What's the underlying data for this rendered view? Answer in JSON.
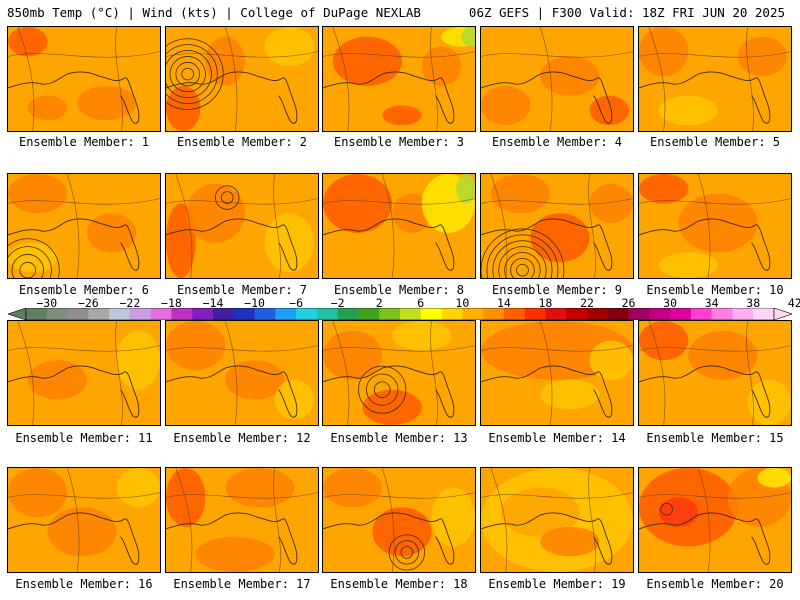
{
  "header": {
    "left": "850mb Temp (°C) | Wind (kts) | College of DuPage NEXLAB",
    "right": "06Z GEFS | F300 Valid: 18Z FRI JUN 20 2025"
  },
  "member_labels": [
    "Ensemble Member: 1",
    "Ensemble Member: 2",
    "Ensemble Member: 3",
    "Ensemble Member: 4",
    "Ensemble Member: 5",
    "Ensemble Member: 6",
    "Ensemble Member: 7",
    "Ensemble Member: 8",
    "Ensemble Member: 9",
    "Ensemble Member: 10",
    "Ensemble Member: 11",
    "Ensemble Member: 12",
    "Ensemble Member: 13",
    "Ensemble Member: 14",
    "Ensemble Member: 15",
    "Ensemble Member: 16",
    "Ensemble Member: 17",
    "Ensemble Member: 18",
    "Ensemble Member: 19",
    "Ensemble Member: 20"
  ],
  "colorbar": {
    "tick_labels": [
      "−30",
      "−26",
      "−22",
      "−18",
      "−14",
      "−10",
      "−6",
      "−2",
      "2",
      "6",
      "10",
      "14",
      "18",
      "22",
      "26",
      "30",
      "34",
      "38",
      "42"
    ],
    "colors": [
      "#5f7f5f",
      "#7d8f7d",
      "#8e8e8e",
      "#a8a8a8",
      "#b8c8d8",
      "#c8a0e0",
      "#e070e0",
      "#c030c0",
      "#8020c0",
      "#4020a0",
      "#2030c0",
      "#2060e0",
      "#20a0f0",
      "#20d0e0",
      "#20c0a0",
      "#20a050",
      "#40a020",
      "#80c020",
      "#c0e020",
      "#ffff00",
      "#ffd700",
      "#ffb000",
      "#ff9000",
      "#ff6000",
      "#ff3000",
      "#e01010",
      "#c00000",
      "#a00000",
      "#800010",
      "#a00060",
      "#c00080",
      "#e000a0",
      "#ff40d0",
      "#ff80e0",
      "#ffb0f0",
      "#ffd8f8"
    ]
  },
  "palette": {
    "base": "#ffa500",
    "warm": "#ff8000",
    "hot": "#ff5a00",
    "cool": "#ffc400",
    "yellow": "#ffe800",
    "green": "#b4d832",
    "coast": "#3a2a00"
  }
}
